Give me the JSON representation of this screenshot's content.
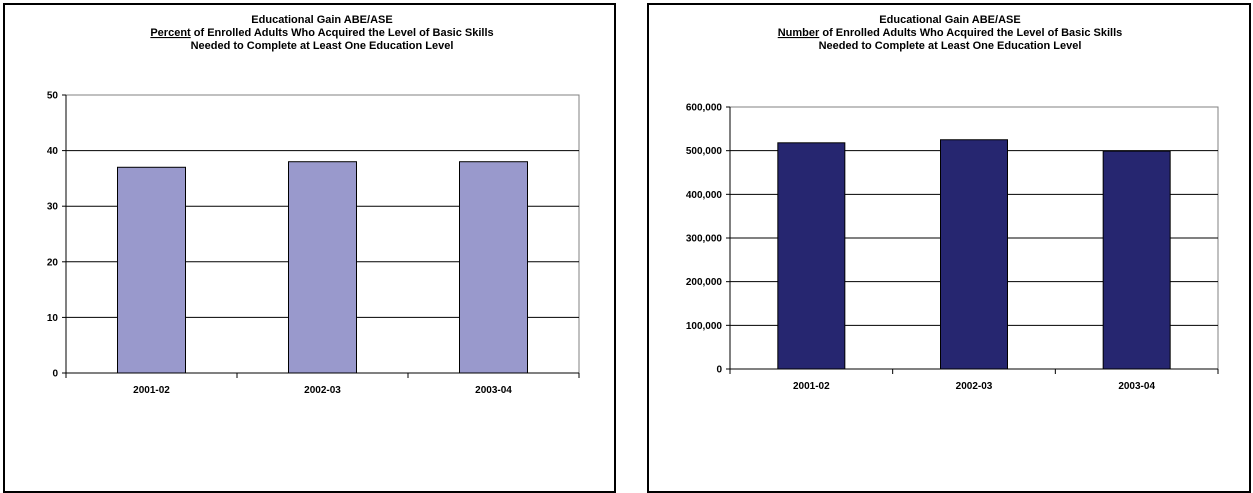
{
  "chart_data": [
    {
      "type": "bar",
      "title_line1": "Educational Gain ABE/ASE",
      "title_line2_emph": "Percent",
      "title_line2_rest": " of Enrolled Adults Who Acquired the Level of Basic Skills",
      "title_line3": "Needed to Complete at Least One Education Level",
      "categories": [
        "2001-02",
        "2002-03",
        "2003-04"
      ],
      "values": [
        37,
        38,
        38
      ],
      "ylim": [
        0,
        50
      ],
      "yticks": [
        0,
        10,
        20,
        30,
        40,
        50
      ],
      "ytick_labels": [
        "0",
        "10",
        "20",
        "30",
        "40",
        "50"
      ],
      "bar_color": "#9999cc",
      "grid": true,
      "xlabel": "",
      "ylabel": ""
    },
    {
      "type": "bar",
      "title_line1": "Educational Gain ABE/ASE",
      "title_line2_emph": "Number",
      "title_line2_rest": " of Enrolled Adults Who Acquired the Level of Basic Skills",
      "title_line3": "Needed to Complete at Least One Education Level",
      "categories": [
        "2001-02",
        "2002-03",
        "2003-04"
      ],
      "values": [
        518000,
        525000,
        499000
      ],
      "ylim": [
        0,
        600000
      ],
      "yticks": [
        0,
        100000,
        200000,
        300000,
        400000,
        500000,
        600000
      ],
      "ytick_labels": [
        "0",
        "100,000",
        "200,000",
        "300,000",
        "400,000",
        "500,000",
        "600,000"
      ],
      "bar_color": "#262670",
      "grid": true,
      "xlabel": "",
      "ylabel": ""
    }
  ]
}
